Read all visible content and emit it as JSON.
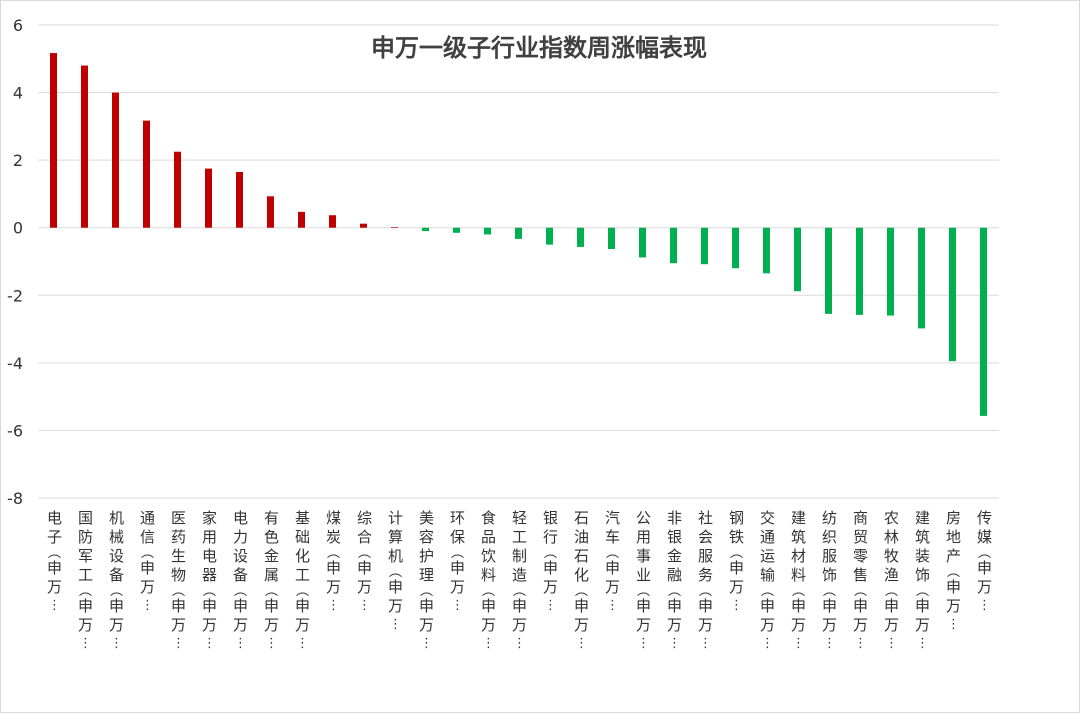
{
  "chart_data": {
    "type": "bar",
    "title": "申万一级子行业指数周涨幅表现",
    "xlabel": "",
    "ylabel": "",
    "ylim": [
      -8,
      6
    ],
    "yticks": [
      6,
      4,
      2,
      0,
      -2,
      -4,
      -6,
      -8
    ],
    "grid": true,
    "legend": "none",
    "positive_color": "#c00000",
    "negative_color": "#00b050",
    "categories": [
      "电子(申万…",
      "国防军工(申万…",
      "机械设备(申万…",
      "通信(申万…",
      "医药生物(申万…",
      "家用电器(申万…",
      "电力设备(申万…",
      "有色金属(申万…",
      "基础化工(申万…",
      "煤炭(申万…",
      "综合(申万…",
      "计算机(申万…",
      "美容护理(申万…",
      "环保(申万…",
      "食品饮料(申万…",
      "轻工制造(申万…",
      "银行(申万…",
      "石油石化(申万…",
      "汽车(申万…",
      "公用事业(申万…",
      "非银金融(申万…",
      "社会服务(申万…",
      "钢铁(申万…",
      "交通运输(申万…",
      "建筑材料(申万…",
      "纺织服饰(申万…",
      "商贸零售(申万…",
      "农林牧渔(申万…",
      "建筑装饰(申万…",
      "房地产(申万…",
      "传媒(申万…"
    ],
    "values": [
      5.17,
      4.8,
      4.0,
      3.17,
      2.25,
      1.75,
      1.65,
      0.93,
      0.47,
      0.37,
      0.12,
      0.02,
      -0.1,
      -0.15,
      -0.2,
      -0.33,
      -0.5,
      -0.57,
      -0.63,
      -0.88,
      -1.05,
      -1.08,
      -1.2,
      -1.35,
      -1.88,
      -2.55,
      -2.58,
      -2.6,
      -2.98,
      -3.95,
      -5.57
    ]
  }
}
